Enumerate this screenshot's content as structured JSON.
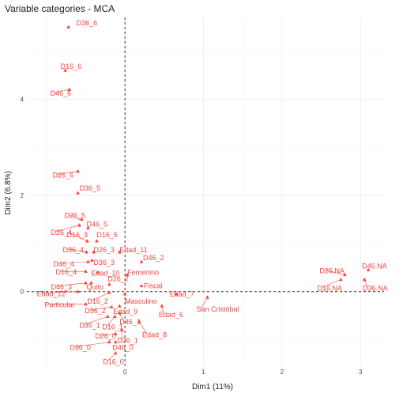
{
  "chart_data": {
    "type": "scatter",
    "title": "Variable categories - MCA",
    "xlabel": "Dim1 (11%)",
    "ylabel": "Dim2 (6.8%)",
    "xlim": [
      -1.25,
      3.3
    ],
    "ylim": [
      -1.55,
      5.7
    ],
    "x_ticks": [
      0,
      1,
      2,
      3
    ],
    "y_ticks": [
      0,
      2,
      4
    ],
    "grid": true,
    "reference_lines": {
      "x": 0,
      "y": 0
    },
    "color": "#f8433b",
    "points": [
      {
        "label": "D36_6",
        "x": -0.72,
        "y": 5.5
      },
      {
        "label": "D16_6",
        "x": -0.76,
        "y": 4.6
      },
      {
        "label": "D46_6",
        "x": -0.71,
        "y": 4.2
      },
      {
        "label": "D26_6",
        "x": -0.6,
        "y": 2.5
      },
      {
        "label": "D36_5",
        "x": -0.6,
        "y": 2.05
      },
      {
        "label": "D26_5",
        "x": -0.55,
        "y": 1.5
      },
      {
        "label": "D26_4",
        "x": -0.58,
        "y": 1.38
      },
      {
        "label": "D46_5",
        "x": -0.47,
        "y": 1.32
      },
      {
        "label": "D16_3",
        "x": -0.48,
        "y": 1.05
      },
      {
        "label": "D16_5",
        "x": -0.36,
        "y": 1.05
      },
      {
        "label": "D36_4",
        "x": -0.49,
        "y": 0.82
      },
      {
        "label": "D26_3",
        "x": -0.4,
        "y": 0.82
      },
      {
        "label": "Edad_11",
        "x": -0.07,
        "y": 0.82
      },
      {
        "label": "D46_4",
        "x": -0.47,
        "y": 0.62
      },
      {
        "label": "D36_3",
        "x": -0.42,
        "y": 0.65
      },
      {
        "label": "D46_2",
        "x": 0.21,
        "y": 0.62
      },
      {
        "label": "D16_4",
        "x": -0.5,
        "y": 0.42
      },
      {
        "label": "Edad_10",
        "x": -0.35,
        "y": 0.4
      },
      {
        "label": "Femenino",
        "x": 0.03,
        "y": 0.35
      },
      {
        "label": "D46_3",
        "x": -0.5,
        "y": 0.18
      },
      {
        "label": "Quito",
        "x": -0.43,
        "y": 0.18
      },
      {
        "label": "D26_2",
        "x": -0.2,
        "y": 0.15
      },
      {
        "label": "Fiscal",
        "x": 0.21,
        "y": 0.12
      },
      {
        "label": "Edad_12",
        "x": -0.6,
        "y": 0.0
      },
      {
        "label": "D16_2",
        "x": -0.2,
        "y": -0.02
      },
      {
        "label": "Masculino",
        "x": 0.0,
        "y": -0.05
      },
      {
        "label": "Edad_7",
        "x": 0.65,
        "y": -0.05
      },
      {
        "label": "San Cristóbal",
        "x": 1.05,
        "y": -0.12
      },
      {
        "label": "Particular",
        "x": -0.5,
        "y": -0.26
      },
      {
        "label": "Edad_9",
        "x": -0.07,
        "y": -0.3
      },
      {
        "label": "D36_2",
        "x": -0.17,
        "y": -0.32
      },
      {
        "label": "Edad_6",
        "x": 0.47,
        "y": -0.3
      },
      {
        "label": "D36_1",
        "x": -0.22,
        "y": -0.52
      },
      {
        "label": "D16_1",
        "x": -0.13,
        "y": -0.52
      },
      {
        "label": "D46_1",
        "x": -0.07,
        "y": -0.45
      },
      {
        "label": "Edad_8",
        "x": 0.18,
        "y": -0.62
      },
      {
        "label": "D26_0",
        "x": -0.12,
        "y": -0.88
      },
      {
        "label": "D26_1",
        "x": -0.04,
        "y": -0.8
      },
      {
        "label": "D36_0",
        "x": -0.2,
        "y": -1.05
      },
      {
        "label": "D46_0",
        "x": -0.12,
        "y": -1.05
      },
      {
        "label": "D16_0",
        "x": -0.12,
        "y": -1.28
      },
      {
        "label": "D26.NA",
        "x": 2.8,
        "y": 0.35
      },
      {
        "label": "D46.NA",
        "x": 3.1,
        "y": 0.45
      },
      {
        "label": "D16.NA",
        "x": 2.75,
        "y": 0.25
      },
      {
        "label": "D36.NA",
        "x": 3.05,
        "y": 0.25
      }
    ]
  }
}
